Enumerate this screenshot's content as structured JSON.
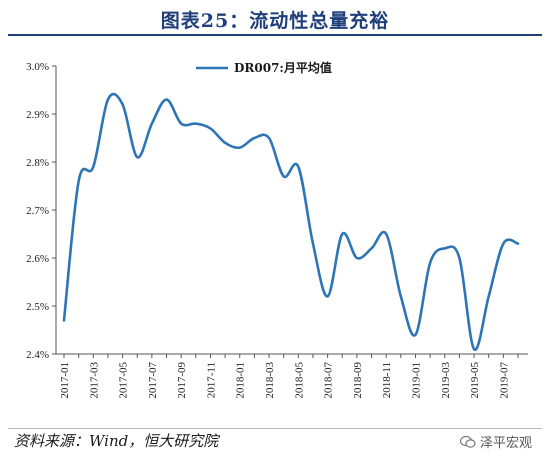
{
  "title": "图表25：流动性总量充裕",
  "source": "资料来源：Wind，恒大研究院",
  "watermark": "泽平宏观",
  "chart_data": {
    "type": "line",
    "title": "图表25：流动性总量充裕",
    "xlabel": "",
    "ylabel": "",
    "ylim": [
      2.4,
      3.0
    ],
    "y_ticks": [
      "2.4%",
      "2.5%",
      "2.6%",
      "2.7%",
      "2.8%",
      "2.9%",
      "3.0%"
    ],
    "x_tick_labels": [
      "2017-01",
      "2017-03",
      "2017-05",
      "2017-07",
      "2017-09",
      "2017-11",
      "2018-01",
      "2018-03",
      "2018-05",
      "2018-07",
      "2018-09",
      "2018-11",
      "2019-01",
      "2019-03",
      "2019-05",
      "2019-07"
    ],
    "legend": "top-center",
    "grid": false,
    "series": [
      {
        "name": "DR007:月平均值",
        "color": "#2e75b6",
        "x": [
          "2017-01",
          "2017-02",
          "2017-03",
          "2017-04",
          "2017-05",
          "2017-06",
          "2017-07",
          "2017-08",
          "2017-09",
          "2017-10",
          "2017-11",
          "2017-12",
          "2018-01",
          "2018-02",
          "2018-03",
          "2018-04",
          "2018-05",
          "2018-06",
          "2018-07",
          "2018-08",
          "2018-09",
          "2018-10",
          "2018-11",
          "2018-12",
          "2019-01",
          "2019-02",
          "2019-03",
          "2019-04",
          "2019-05",
          "2019-06",
          "2019-07",
          "2019-08"
        ],
        "values": [
          2.47,
          2.76,
          2.79,
          2.93,
          2.92,
          2.81,
          2.88,
          2.93,
          2.88,
          2.88,
          2.87,
          2.84,
          2.83,
          2.85,
          2.85,
          2.77,
          2.79,
          2.63,
          2.52,
          2.65,
          2.6,
          2.62,
          2.65,
          2.52,
          2.44,
          2.59,
          2.62,
          2.6,
          2.41,
          2.52,
          2.63,
          2.63
        ]
      }
    ]
  }
}
